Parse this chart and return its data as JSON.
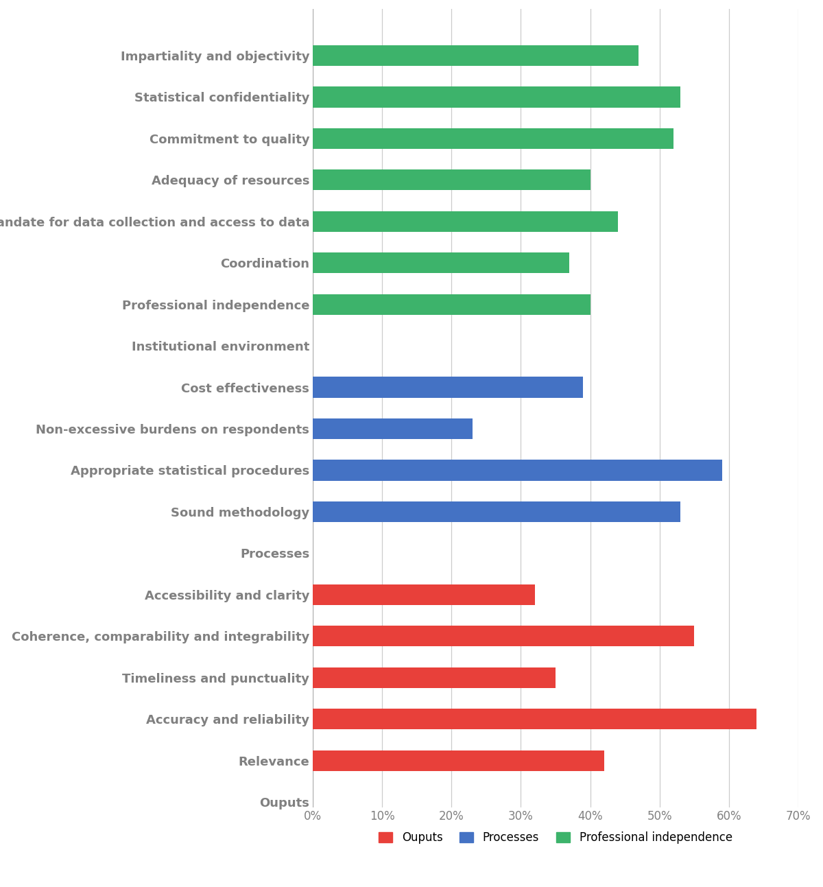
{
  "categories": [
    "Impartiality and objectivity",
    "Statistical confidentiality",
    "Commitment to quality",
    "Adequacy of resources",
    "Mandate for data collection and access to data",
    "Coordination",
    "Professional independence",
    "Institutional environment",
    "Cost effectiveness",
    "Non-excessive burdens on respondents",
    "Appropriate statistical procedures",
    "Sound methodology",
    "Processes",
    "Accessibility and clarity",
    "Coherence, comparability and integrability",
    "Timeliness and punctuality",
    "Accuracy and reliability",
    "Relevance",
    "Ouputs"
  ],
  "values": [
    47,
    53,
    52,
    40,
    44,
    37,
    40,
    0,
    39,
    23,
    59,
    53,
    0,
    32,
    55,
    35,
    64,
    42,
    0
  ],
  "colors": [
    "#3db36b",
    "#3db36b",
    "#3db36b",
    "#3db36b",
    "#3db36b",
    "#3db36b",
    "#3db36b",
    "none",
    "#4472c4",
    "#4472c4",
    "#4472c4",
    "#4472c4",
    "none",
    "#e8403a",
    "#e8403a",
    "#e8403a",
    "#e8403a",
    "#e8403a",
    "none"
  ],
  "bar_color_outputs": "#e8403a",
  "bar_color_processes": "#4472c4",
  "bar_color_institutional": "#3db36b",
  "xlim": [
    0,
    70
  ],
  "xticks": [
    0,
    10,
    20,
    30,
    40,
    50,
    60,
    70
  ],
  "xtick_labels": [
    "0%",
    "10%",
    "20%",
    "30%",
    "40%",
    "50%",
    "60%",
    "70%"
  ],
  "legend_labels": [
    "Ouputs",
    "Processes",
    "Professional independence"
  ],
  "legend_colors": [
    "#e8403a",
    "#4472c4",
    "#3db36b"
  ],
  "background_color": "#ffffff",
  "grid_color": "#cccccc",
  "label_fontsize": 13,
  "tick_fontsize": 12,
  "bar_height": 0.5
}
